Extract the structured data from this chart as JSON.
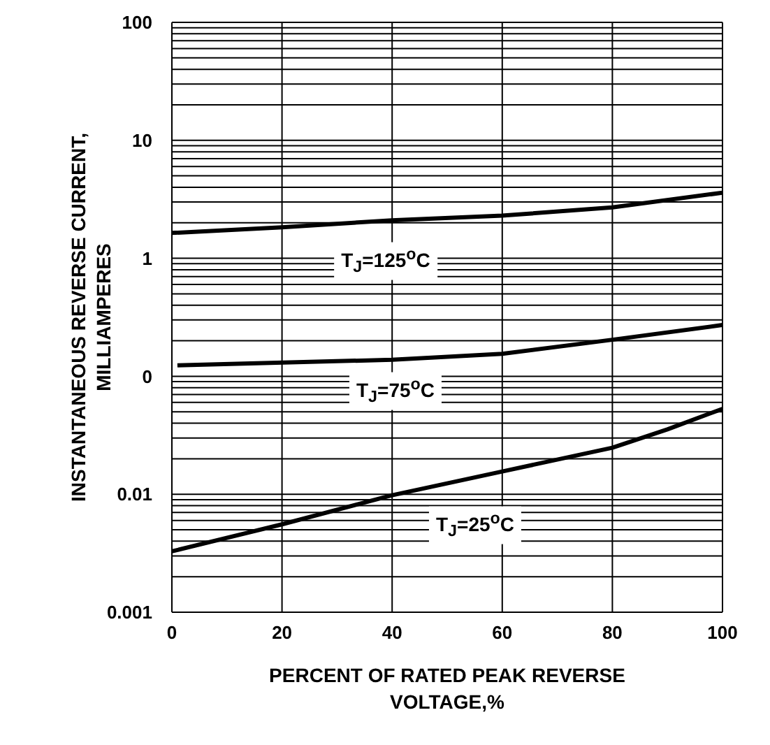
{
  "chart_data": {
    "type": "line",
    "xlabel": "PERCENT OF RATED PEAK REVERSE\nVOLTAGE,%",
    "ylabel": "INSTANTANEOUS REVERSE CURRENT,\nMILLIAMPERES",
    "log": "y",
    "grid": true,
    "marker": "none",
    "line_style": "solid",
    "legend": false,
    "xlim": [
      0,
      100
    ],
    "xticks": [
      0,
      20,
      40,
      60,
      80,
      100
    ],
    "ylim": [
      0.001,
      100
    ],
    "yticks": [
      0.001,
      {
        "value": 0.002,
        "label": null
      },
      {
        "value": 0.003,
        "label": null
      },
      {
        "value": 0.004,
        "label": null
      },
      {
        "value": 0.005,
        "label": null
      },
      {
        "value": 0.006,
        "label": null
      },
      {
        "value": 0.007,
        "label": null
      },
      {
        "value": 0.008,
        "label": null
      },
      {
        "value": 0.009,
        "label": null
      },
      0.01,
      {
        "value": 0.02,
        "label": null
      },
      {
        "value": 0.03,
        "label": null
      },
      {
        "value": 0.04,
        "label": null
      },
      {
        "value": 0.05,
        "label": null
      },
      {
        "value": 0.06,
        "label": null
      },
      {
        "value": 0.07,
        "label": null
      },
      {
        "value": 0.08,
        "label": null
      },
      {
        "value": 0.09,
        "label": null
      },
      {
        "value": 0.1,
        "label": "0"
      },
      {
        "value": 0.2,
        "label": null
      },
      {
        "value": 0.3,
        "label": null
      },
      {
        "value": 0.4,
        "label": null
      },
      {
        "value": 0.5,
        "label": null
      },
      {
        "value": 0.6,
        "label": null
      },
      {
        "value": 0.7,
        "label": null
      },
      {
        "value": 0.8,
        "label": null
      },
      {
        "value": 0.9,
        "label": null
      },
      1,
      {
        "value": 2,
        "label": null
      },
      {
        "value": 3,
        "label": null
      },
      {
        "value": 4,
        "label": null
      },
      {
        "value": 5,
        "label": null
      },
      {
        "value": 6,
        "label": null
      },
      {
        "value": 7,
        "label": null
      },
      {
        "value": 8,
        "label": null
      },
      {
        "value": 9,
        "label": null
      },
      10,
      {
        "value": 20,
        "label": null
      },
      {
        "value": 30,
        "label": null
      },
      {
        "value": 40,
        "label": null
      },
      {
        "value": 50,
        "label": null
      },
      {
        "value": 60,
        "label": null
      },
      {
        "value": 70,
        "label": null
      },
      {
        "value": 80,
        "label": null
      },
      {
        "value": 90,
        "label": null
      },
      100
    ],
    "series": [
      {
        "name": "T$_{J}$=125$^{o}$C",
        "color": "#000000",
        "x": [
          0,
          20,
          40,
          60,
          80,
          100
        ],
        "values": [
          1.64,
          1.83,
          2.1,
          2.3,
          2.7,
          3.6
        ]
      },
      {
        "name": "T$_{J}$=75$^{o}$C",
        "color": "#000000",
        "x": [
          1,
          40,
          60,
          80,
          100
        ],
        "values": [
          0.124,
          0.138,
          0.155,
          0.204,
          0.272
        ]
      },
      {
        "name": "T$_{J}$=25$^{o}$C",
        "color": "#000000",
        "x": [
          0,
          20,
          40,
          60,
          80,
          90,
          100
        ],
        "values": [
          0.00328,
          0.00556,
          0.0098,
          0.0156,
          0.0248,
          0.0355,
          0.053
        ]
      }
    ]
  }
}
